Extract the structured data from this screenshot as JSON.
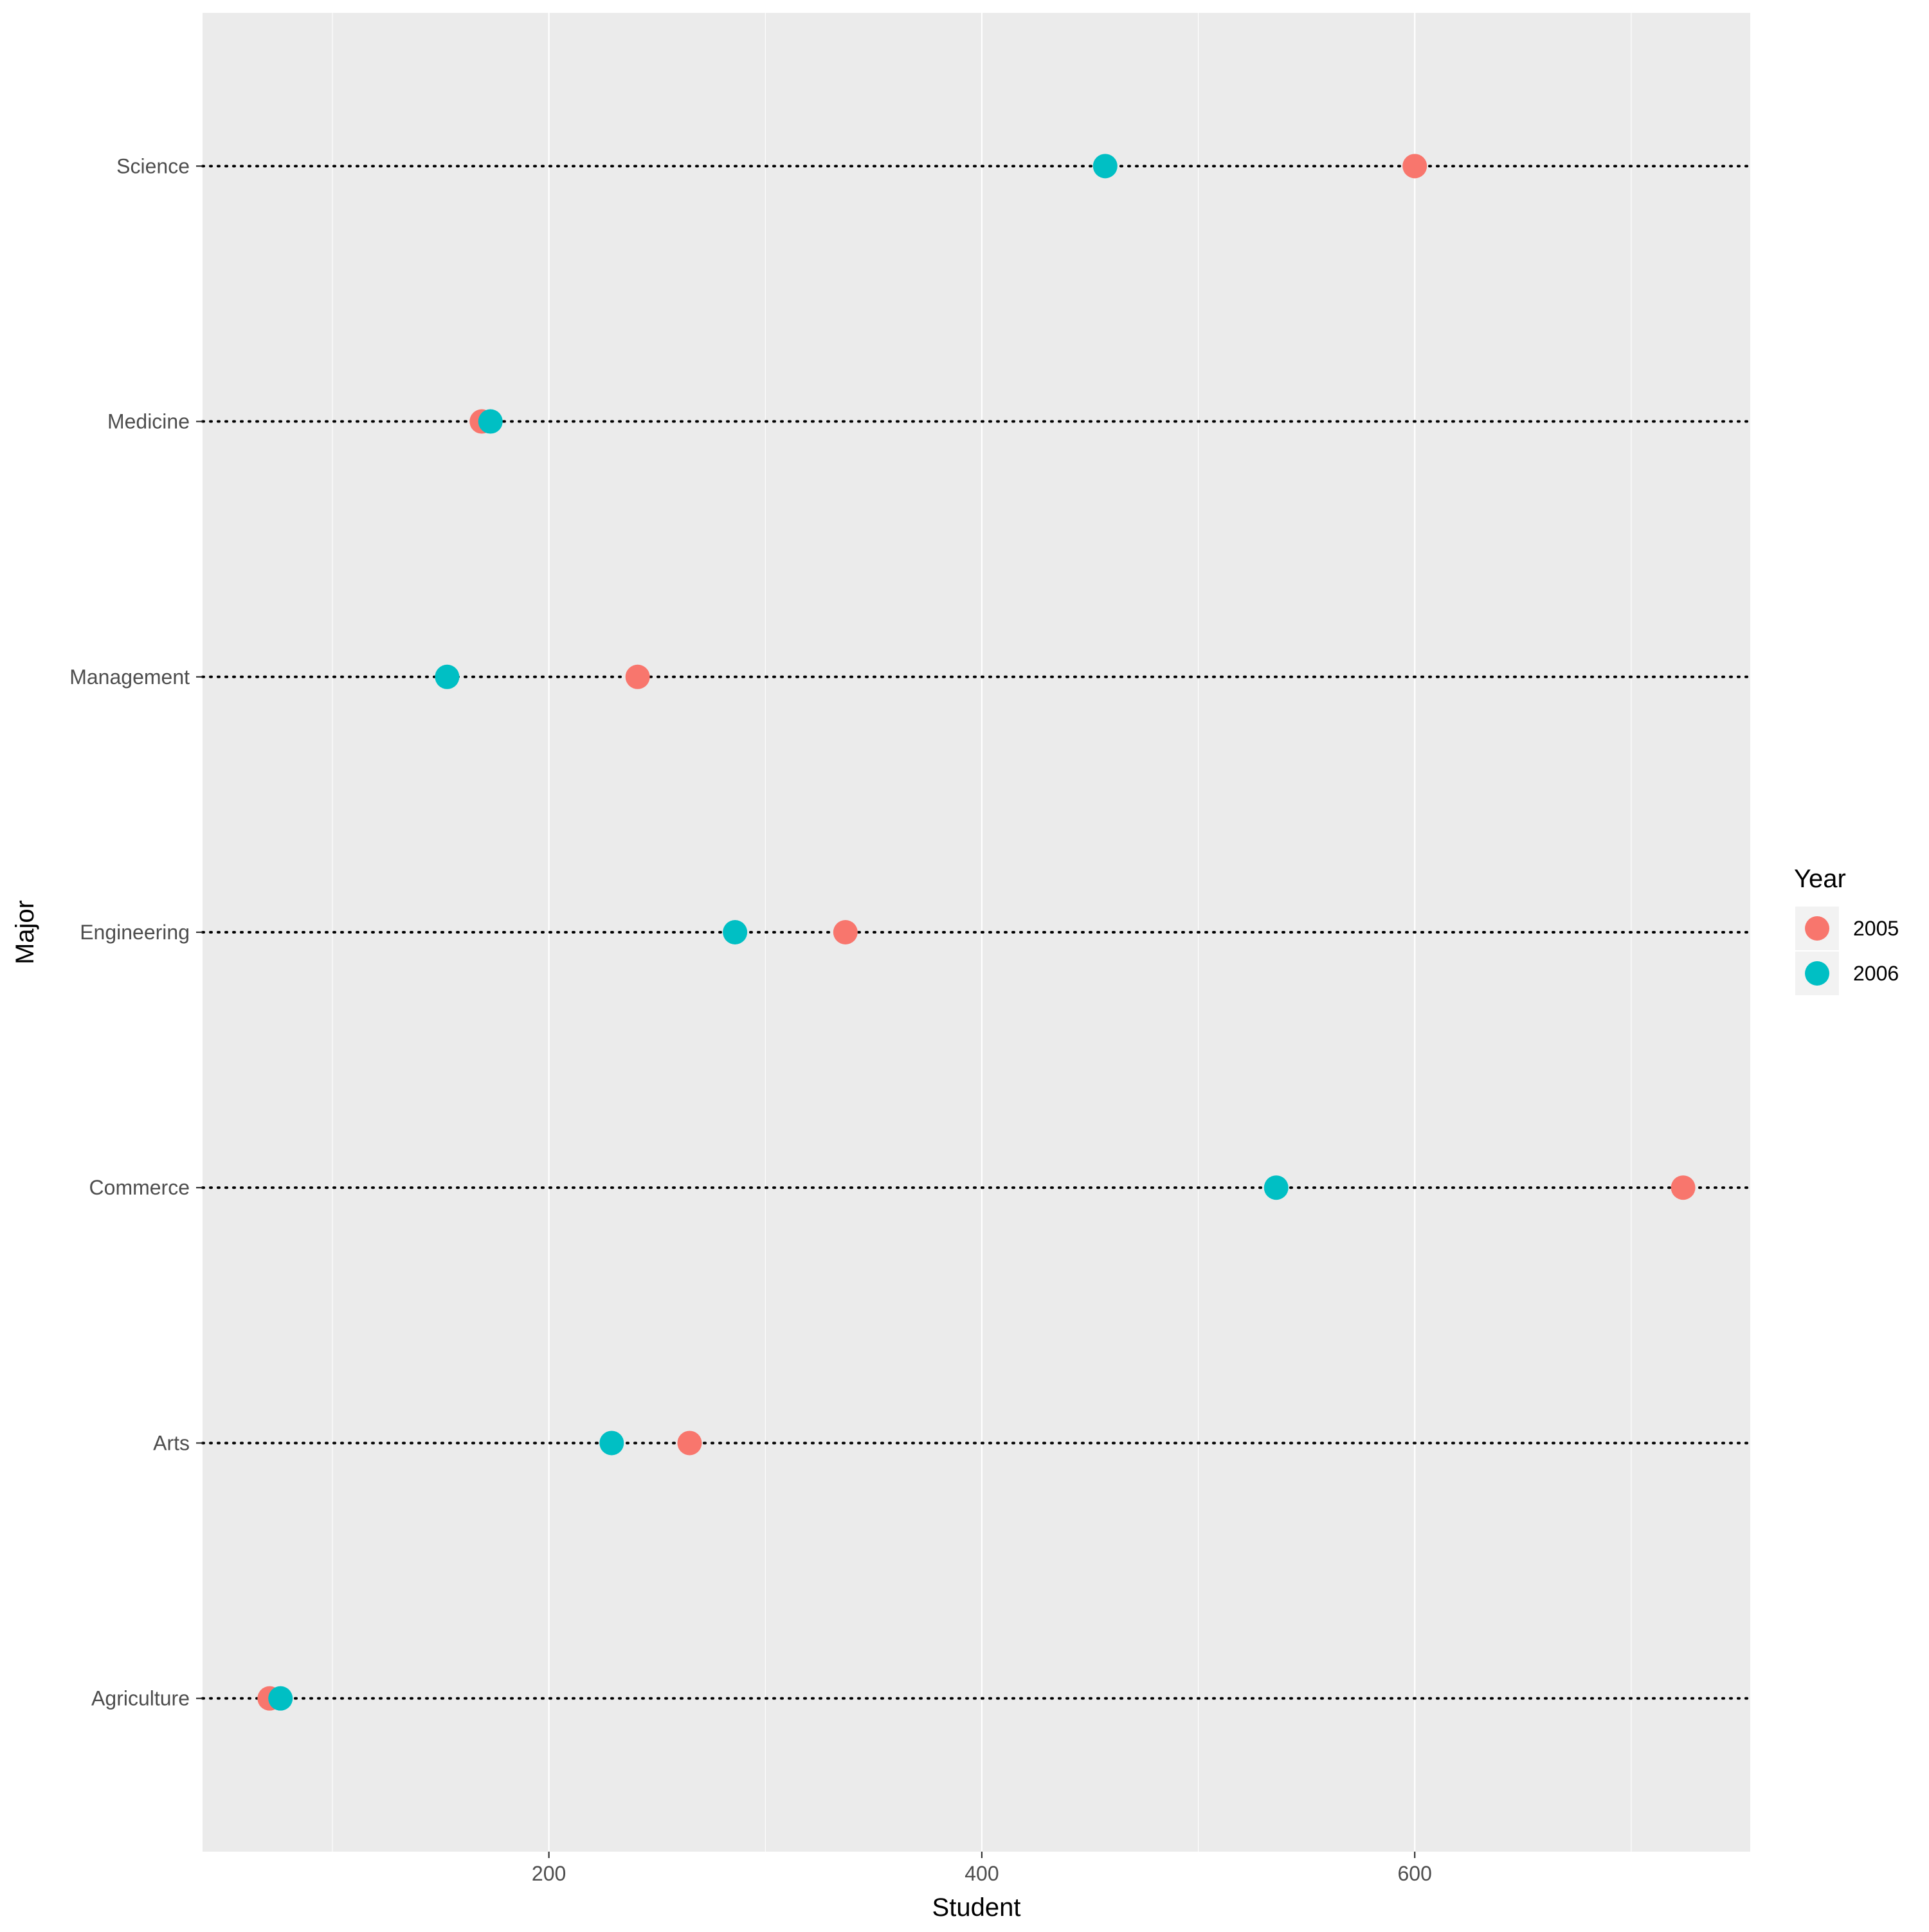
{
  "chart_data": {
    "type": "scatter",
    "title": "",
    "xlabel": "Student",
    "ylabel": "Major",
    "xlim": [
      40,
      755
    ],
    "x_ticks": [
      200,
      400,
      600
    ],
    "categories": [
      "Agriculture",
      "Arts",
      "Commerce",
      "Engineering",
      "Management",
      "Medicine",
      "Science"
    ],
    "series": [
      {
        "name": "2005",
        "color": "#F8766D",
        "values": [
          71,
          265,
          724,
          337,
          241,
          169,
          600
        ]
      },
      {
        "name": "2006",
        "color": "#00BFC4",
        "values": [
          76,
          229,
          536,
          286,
          153,
          173,
          457
        ]
      }
    ],
    "legend": {
      "title": "Year",
      "position": "right"
    },
    "grid": true,
    "panel_background": "#EBEBEB",
    "gridline_color": "#FFFFFF",
    "dotted_line_color": "#000000"
  }
}
